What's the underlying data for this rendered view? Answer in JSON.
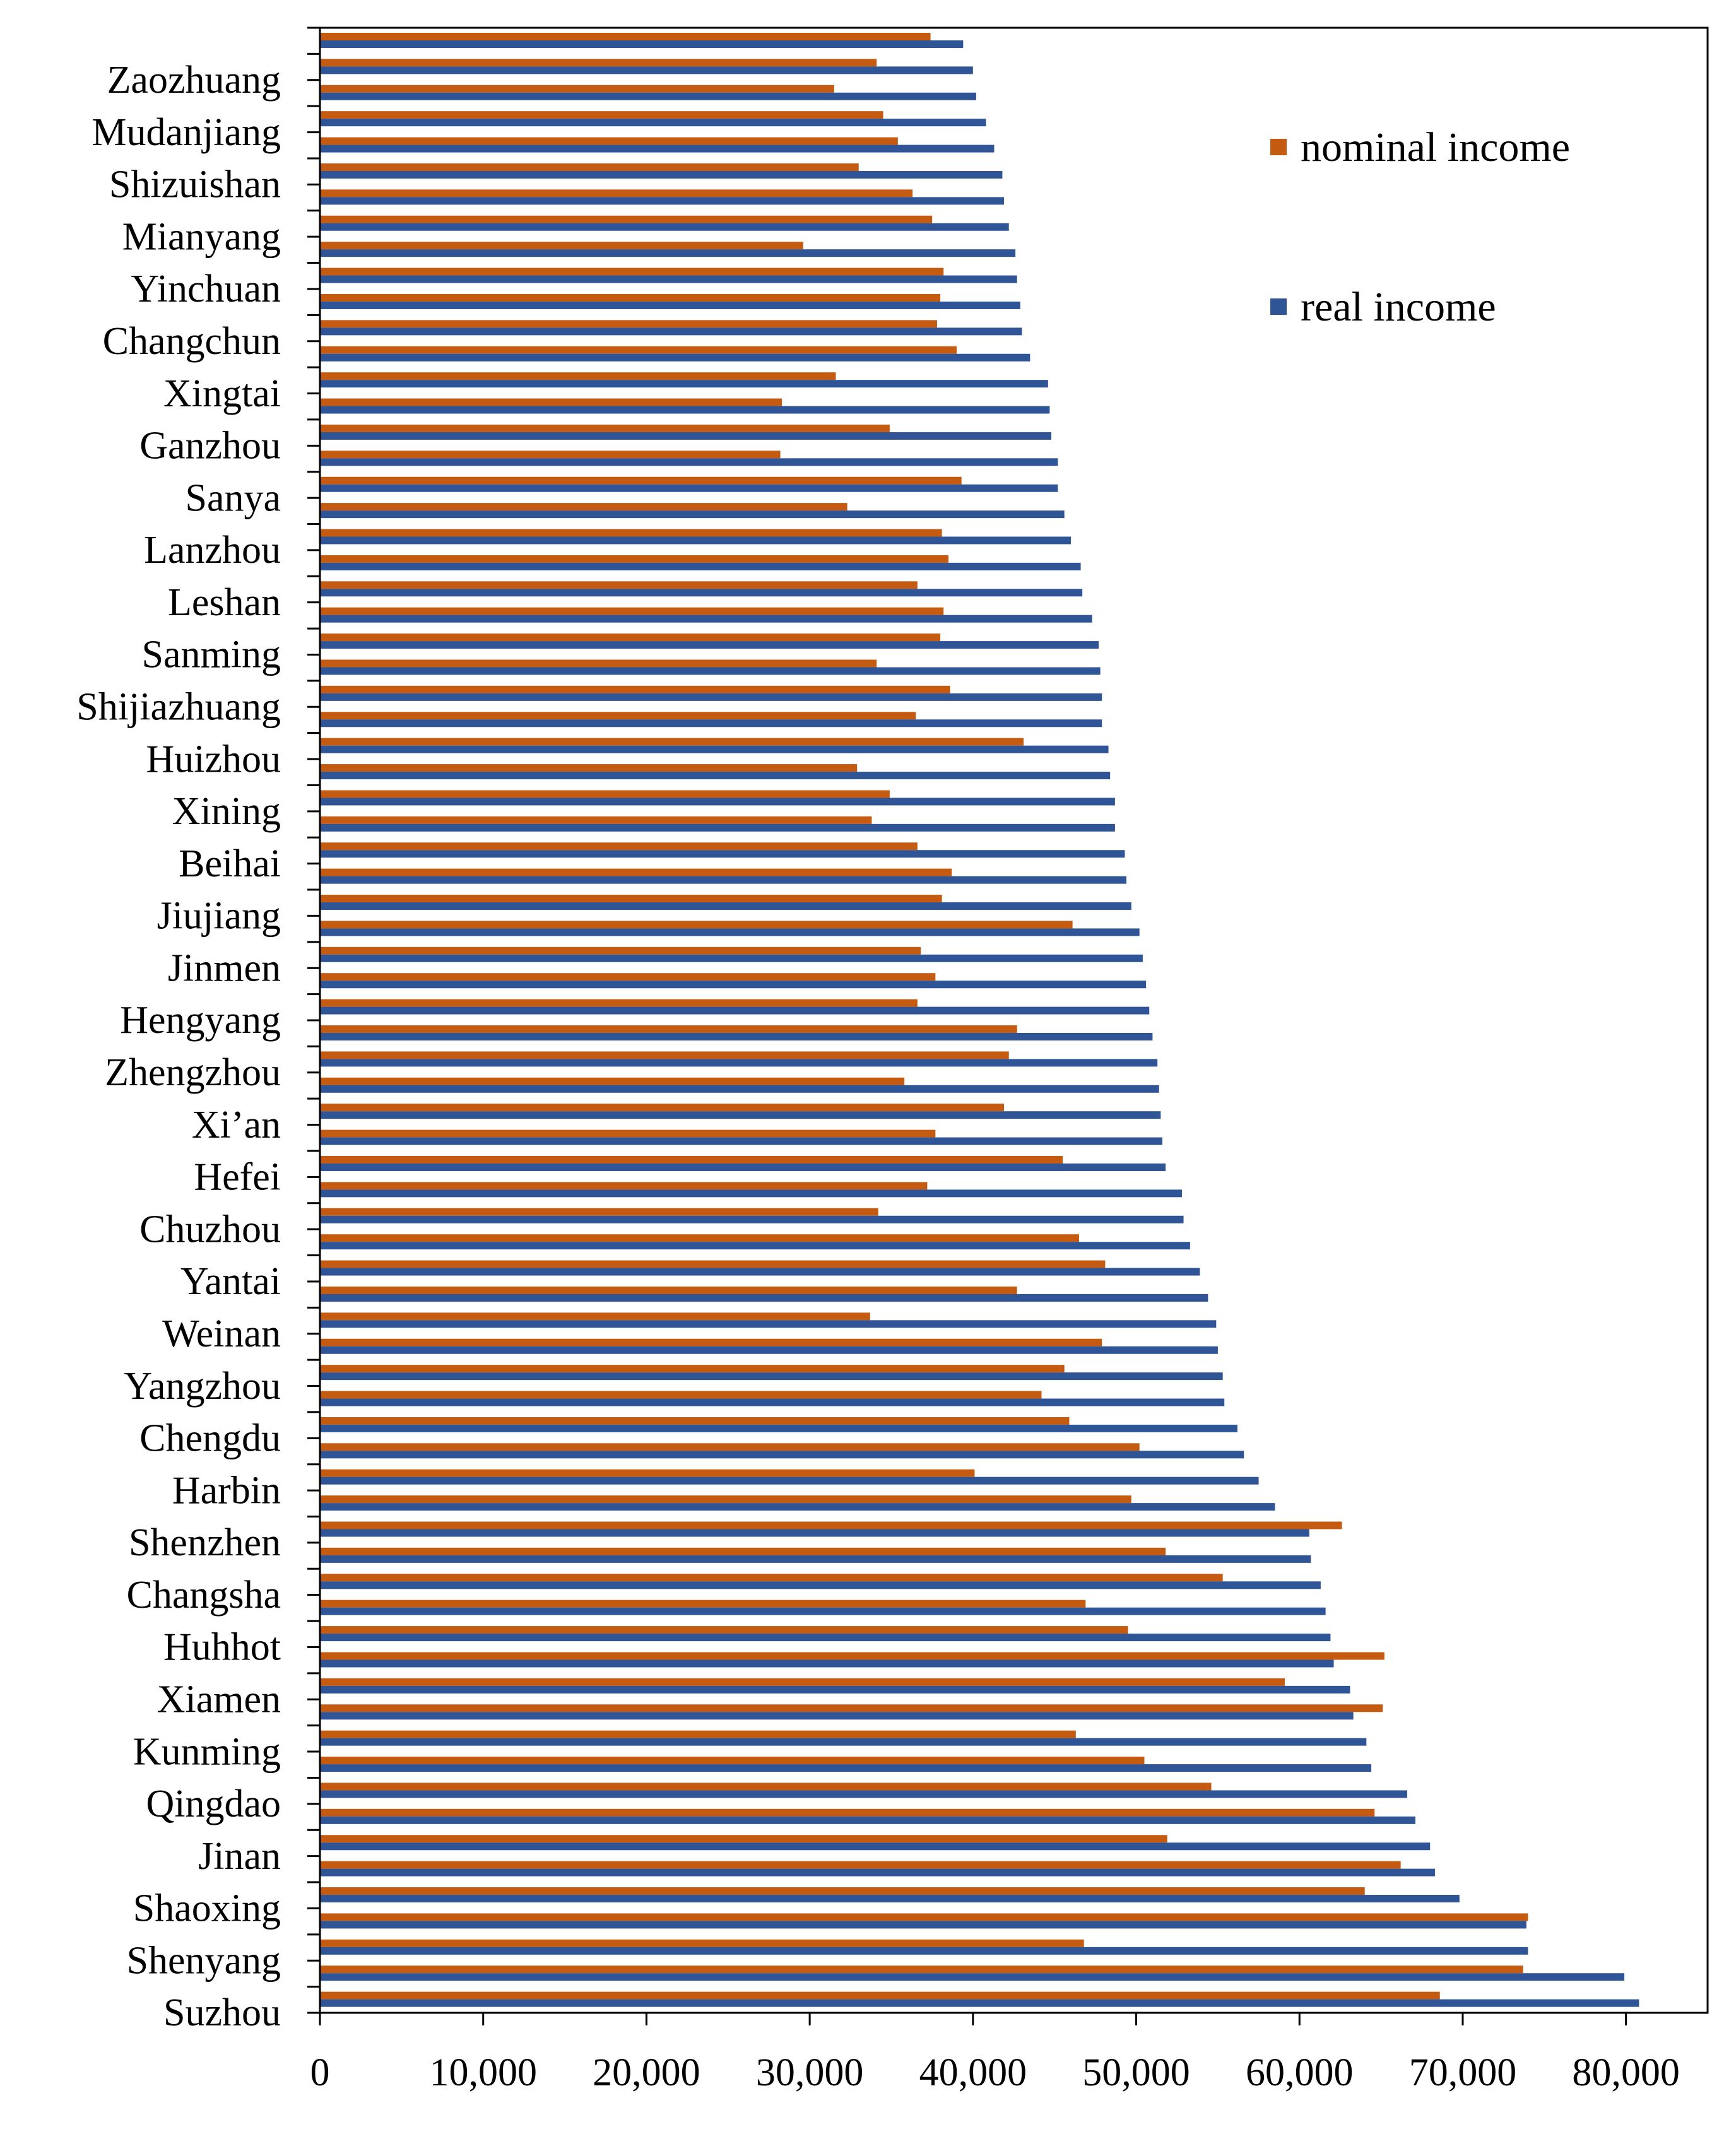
{
  "chart_data": {
    "type": "bar",
    "orientation": "horizontal",
    "title": "",
    "xlabel": "",
    "ylabel": "",
    "xlim": [
      0,
      85000
    ],
    "xticks": [
      0,
      10000,
      20000,
      30000,
      40000,
      50000,
      60000,
      70000,
      80000
    ],
    "xtick_labels": [
      "0",
      "10,000",
      "20,000",
      "30,000",
      "40,000",
      "50,000",
      "60,000",
      "70,000",
      "80,000"
    ],
    "grid": false,
    "legend_position": "top-right",
    "colors": {
      "nominal": "#c55a11",
      "real": "#2f5597"
    },
    "category_order": "top-to-bottom",
    "categories": [
      "",
      "Zaozhuang",
      "",
      "Mudanjiang",
      "",
      "Shizuishan",
      "",
      "Mianyang",
      "",
      "Yinchuan",
      "",
      "Changchun",
      "",
      "Xingtai",
      "",
      "Ganzhou",
      "",
      "Sanya",
      "",
      "Lanzhou",
      "",
      "Leshan",
      "",
      "Sanming",
      "",
      "Shijiazhuang",
      "",
      "Huizhou",
      "",
      "Xining",
      "",
      "Beihai",
      "",
      "Jiujiang",
      "",
      "Jinmen",
      "",
      "Hengyang",
      "",
      "Zhengzhou",
      "",
      "Xi’an",
      "",
      "Hefei",
      "",
      "Chuzhou",
      "",
      "Yantai",
      "",
      "Weinan",
      "",
      "Yangzhou",
      "",
      "Chengdu",
      "",
      "Harbin",
      "",
      "Shenzhen",
      "",
      "Changsha",
      "",
      "Huhhot",
      "",
      "Xiamen",
      "",
      "Kunming",
      "",
      "Qingdao",
      "",
      "Jinan",
      "",
      "Shaoxing",
      "",
      "Shenyang",
      "",
      "Suzhou"
    ],
    "series": [
      {
        "name": "nominal income",
        "values": [
          37400,
          34100,
          31500,
          34500,
          35400,
          33000,
          36300,
          37500,
          29600,
          38200,
          38000,
          37800,
          39000,
          31600,
          28300,
          34900,
          28200,
          39300,
          32300,
          38100,
          38500,
          36600,
          38200,
          38000,
          34100,
          38600,
          36500,
          43100,
          32900,
          34900,
          33800,
          36600,
          38700,
          38100,
          46100,
          36800,
          37700,
          36600,
          42700,
          42200,
          35800,
          41900,
          37700,
          45500,
          37200,
          34200,
          46500,
          48100,
          42700,
          33700,
          47900,
          45600,
          44200,
          45900,
          50200,
          40100,
          49700,
          62600,
          51800,
          55300,
          46900,
          49500,
          65200,
          59100,
          65100,
          46300,
          50500,
          54600,
          64600,
          51900,
          66200,
          64000,
          74000,
          46800,
          73700,
          68600
        ]
      },
      {
        "name": "real income",
        "values": [
          39400,
          40000,
          40200,
          40800,
          41300,
          41800,
          41900,
          42200,
          42600,
          42700,
          42900,
          43000,
          43500,
          44600,
          44700,
          44800,
          45200,
          45200,
          45600,
          46000,
          46600,
          46700,
          47300,
          47700,
          47800,
          47900,
          47900,
          48300,
          48400,
          48700,
          48700,
          49300,
          49400,
          49700,
          50200,
          50400,
          50600,
          50800,
          51000,
          51300,
          51400,
          51500,
          51600,
          51800,
          52800,
          52900,
          53300,
          53900,
          54400,
          54900,
          55000,
          55300,
          55400,
          56200,
          56600,
          57500,
          58500,
          60600,
          60700,
          61300,
          61600,
          61900,
          62100,
          63100,
          63300,
          64100,
          64400,
          66600,
          67100,
          68000,
          68300,
          69800,
          73900,
          74000,
          79900,
          80800
        ]
      }
    ]
  }
}
